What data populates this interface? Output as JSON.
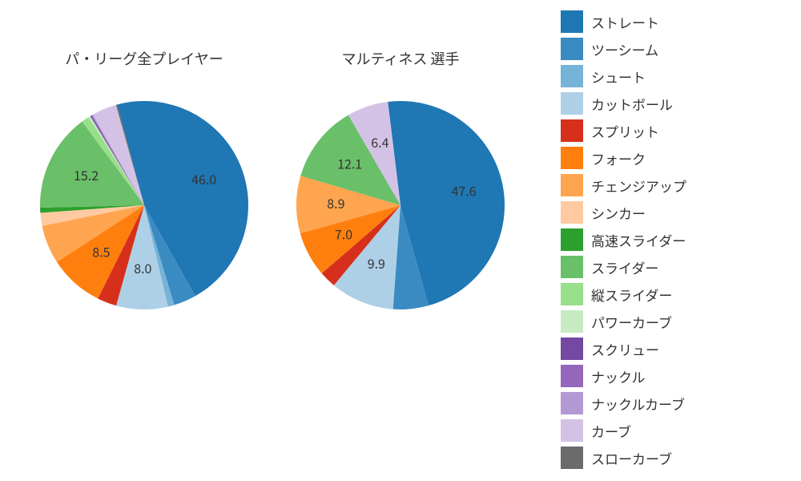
{
  "background_color": "#ffffff",
  "title_fontsize": 18,
  "label_fontsize": 16,
  "legend_fontsize": 17,
  "pie_radius": 130,
  "legend": [
    {
      "label": "ストレート",
      "color": "#1f77b4"
    },
    {
      "label": "ツーシーム",
      "color": "#3a8bc2"
    },
    {
      "label": "シュート",
      "color": "#76b3d8"
    },
    {
      "label": "カットボール",
      "color": "#aed0e6"
    },
    {
      "label": "スプリット",
      "color": "#d6301c"
    },
    {
      "label": "フォーク",
      "color": "#ff7f0e"
    },
    {
      "label": "チェンジアップ",
      "color": "#ffa54f"
    },
    {
      "label": "シンカー",
      "color": "#ffcaa1"
    },
    {
      "label": "高速スライダー",
      "color": "#2ca02c"
    },
    {
      "label": "スライダー",
      "color": "#6abf69"
    },
    {
      "label": "縦スライダー",
      "color": "#98df8a"
    },
    {
      "label": "パワーカーブ",
      "color": "#c6ebc1"
    },
    {
      "label": "スクリュー",
      "color": "#7349a4"
    },
    {
      "label": "ナックル",
      "color": "#9467bd"
    },
    {
      "label": "ナックルカーブ",
      "color": "#b399d4"
    },
    {
      "label": "カーブ",
      "color": "#d4c2e6"
    },
    {
      "label": "スローカーブ",
      "color": "#6b6b6b"
    }
  ],
  "charts": [
    {
      "title": "パ・リーグ全プレイヤー",
      "slices": [
        {
          "legend": 0,
          "value": 46.0,
          "show_label": true
        },
        {
          "legend": 1,
          "value": 3.5,
          "show_label": false
        },
        {
          "legend": 2,
          "value": 1.0,
          "show_label": false
        },
        {
          "legend": 3,
          "value": 8.0,
          "show_label": true
        },
        {
          "legend": 4,
          "value": 3.0,
          "show_label": false
        },
        {
          "legend": 5,
          "value": 8.5,
          "show_label": true
        },
        {
          "legend": 6,
          "value": 6.0,
          "show_label": false
        },
        {
          "legend": 7,
          "value": 2.0,
          "show_label": false
        },
        {
          "legend": 8,
          "value": 0.8,
          "show_label": false
        },
        {
          "legend": 9,
          "value": 15.2,
          "show_label": true
        },
        {
          "legend": 10,
          "value": 1.2,
          "show_label": false
        },
        {
          "legend": 11,
          "value": 0.3,
          "show_label": false
        },
        {
          "legend": 12,
          "value": 0.2,
          "show_label": false
        },
        {
          "legend": 13,
          "value": 0.1,
          "show_label": false
        },
        {
          "legend": 14,
          "value": 0.2,
          "show_label": false
        },
        {
          "legend": 15,
          "value": 3.8,
          "show_label": false
        },
        {
          "legend": 16,
          "value": 0.2,
          "show_label": false
        }
      ],
      "start_angle_deg": -15
    },
    {
      "title": "マルティネス  選手",
      "slices": [
        {
          "legend": 0,
          "value": 47.6,
          "show_label": true
        },
        {
          "legend": 1,
          "value": 5.5,
          "show_label": false
        },
        {
          "legend": 3,
          "value": 9.9,
          "show_label": true
        },
        {
          "legend": 4,
          "value": 2.6,
          "show_label": false
        },
        {
          "legend": 5,
          "value": 7.0,
          "show_label": true
        },
        {
          "legend": 6,
          "value": 8.9,
          "show_label": true
        },
        {
          "legend": 9,
          "value": 12.1,
          "show_label": true
        },
        {
          "legend": 15,
          "value": 6.4,
          "show_label": true
        }
      ],
      "start_angle_deg": -7
    }
  ]
}
